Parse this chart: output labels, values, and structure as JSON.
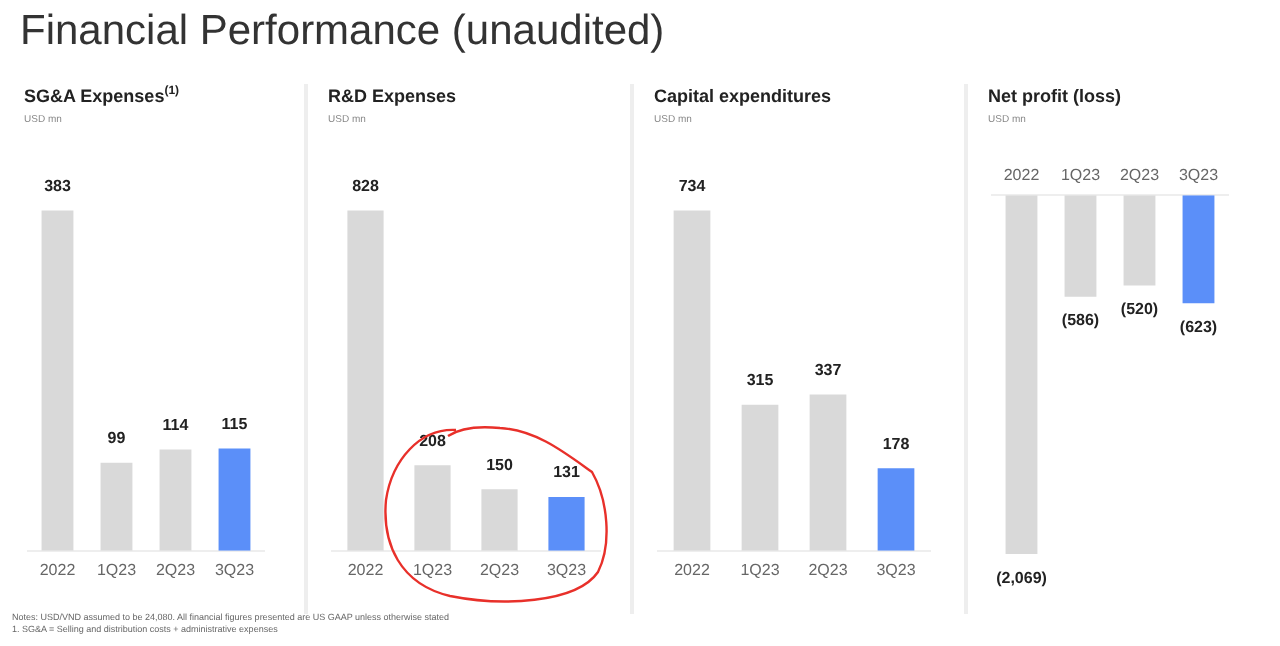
{
  "chart_data": [
    {
      "type": "other",
      "title": "Financial Performance (unaudited)",
      "annotations": [
        "Notes: USD/VND assumed to be 24,080. All financial figures presented are US GAAP unless otherwise stated",
        "1. SG&A = Selling and distribution costs + administrative expenses"
      ]
    },
    {
      "type": "bar",
      "title": "SG&A Expenses$^{(1)}$",
      "subtitle": "USD mn",
      "categories": [
        "2022",
        "1Q23",
        "2Q23",
        "3Q23"
      ],
      "values": [
        383,
        99,
        114,
        115
      ],
      "colors": [
        "#d9d9d9",
        "#d9d9d9",
        "#d9d9d9",
        "#5b8ff9"
      ],
      "data_labels": true,
      "tick_labels": "x",
      "grid": false,
      "legend": false
    },
    {
      "type": "bar",
      "title": "R&D Expenses",
      "subtitle": "USD mn",
      "categories": [
        "2022",
        "1Q23",
        "2Q23",
        "3Q23"
      ],
      "values": [
        828,
        208,
        150,
        131
      ],
      "colors": [
        "#d9d9d9",
        "#d9d9d9",
        "#d9d9d9",
        "#5b8ff9"
      ],
      "data_labels": true,
      "tick_labels": "x",
      "grid": false,
      "legend": false
    },
    {
      "type": "bar",
      "title": "Capital expenditures",
      "subtitle": "USD mn",
      "categories": [
        "2022",
        "1Q23",
        "2Q23",
        "3Q23"
      ],
      "values": [
        734,
        315,
        337,
        178
      ],
      "colors": [
        "#d9d9d9",
        "#d9d9d9",
        "#d9d9d9",
        "#5b8ff9"
      ],
      "data_labels": true,
      "tick_labels": "x",
      "grid": false,
      "legend": false
    },
    {
      "type": "bar",
      "title": "Net profit (loss)",
      "subtitle": "USD mn",
      "categories": [
        "2022",
        "1Q23",
        "2Q23",
        "3Q23"
      ],
      "values": [
        -2069,
        -586,
        -520,
        -623
      ],
      "value_labels": [
        "(2,069)",
        "(586)",
        "(520)",
        "(623)"
      ],
      "colors": [
        "#d9d9d9",
        "#d9d9d9",
        "#d9d9d9",
        "#5b8ff9"
      ],
      "tick_labels": "x",
      "grid": false,
      "legend": false
    }
  ]
}
